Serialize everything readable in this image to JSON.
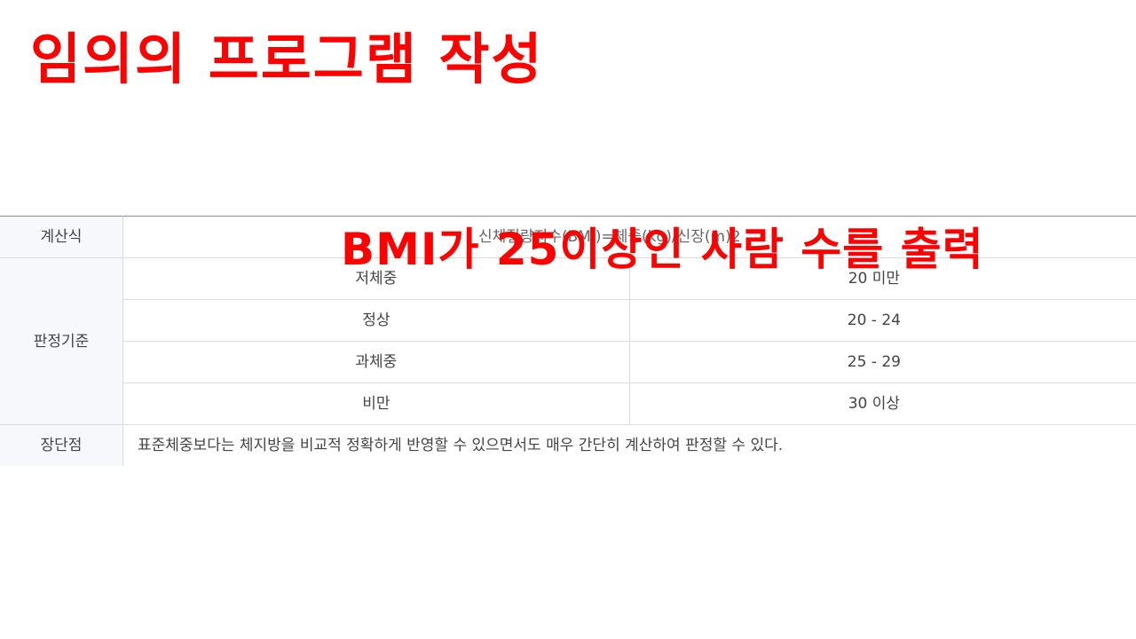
{
  "title": "임의의 프로그램 작성",
  "overlay_caption": "BMI가 25이상인 사람 수를 출력",
  "table": {
    "formula_label": "계산식",
    "formula": "신체질량지수(BMI)=체중(kg)/신장(m)2",
    "criteria_label": "판정기준",
    "criteria": [
      {
        "category": "저체중",
        "range": "20 미만"
      },
      {
        "category": "정상",
        "range": "20 - 24"
      },
      {
        "category": "과체중",
        "range": "25 - 29"
      },
      {
        "category": "비만",
        "range": "30 이상"
      }
    ],
    "advantage_label": "장단점",
    "advantage": "표준체중보다는 체지방을 비교적 정확하게 반영할 수 있으면서도 매우 간단히 계산하여 판정할 수 있다."
  },
  "colors": {
    "accent": "#ff0000",
    "header_bg": "#f7f8fc",
    "border": "#dcdcdc",
    "text": "#444444"
  }
}
